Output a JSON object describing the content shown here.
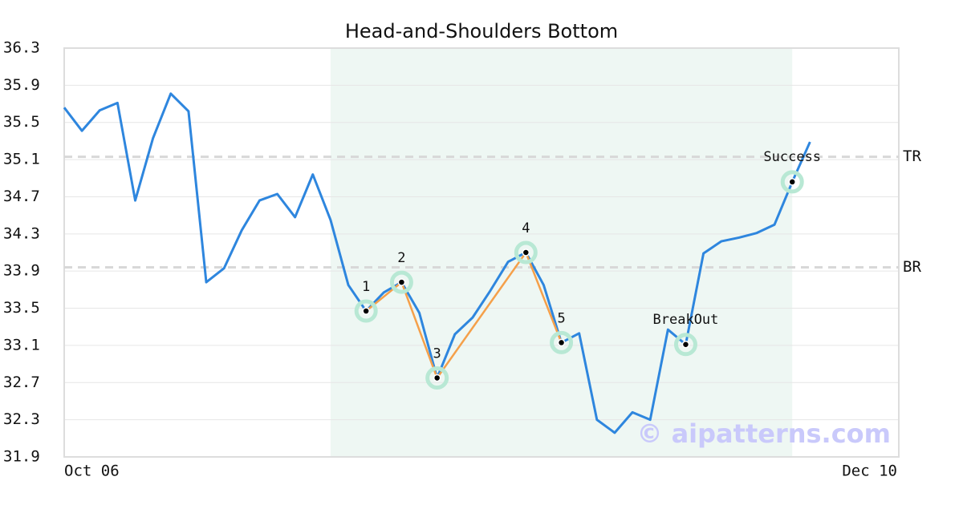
{
  "chart_data": {
    "type": "line",
    "title": "Head-and-Shoulders Bottom",
    "categories": [
      "Oct 06",
      null,
      null,
      null,
      null,
      null,
      null,
      null,
      null,
      null,
      null,
      null,
      null,
      null,
      null,
      null,
      null,
      null,
      null,
      null,
      null,
      null,
      null,
      null,
      null,
      null,
      null,
      null,
      null,
      null,
      null,
      null,
      null,
      null,
      null,
      null,
      null,
      null,
      null,
      null,
      null,
      null,
      null,
      null,
      null,
      null,
      null,
      "Dec 10"
    ],
    "series": [
      {
        "color": "#2e86de",
        "values": [
          35.66,
          35.41,
          35.63,
          35.71,
          34.66,
          35.33,
          35.81,
          35.62,
          33.78,
          33.93,
          34.34,
          34.66,
          34.73,
          34.48,
          34.94,
          34.45,
          33.75,
          33.47,
          33.67,
          33.78,
          33.45,
          32.75,
          33.22,
          33.4,
          33.69,
          34.0,
          34.1,
          33.75,
          33.13,
          33.23,
          32.3,
          32.16,
          32.38,
          32.3,
          33.27,
          33.11,
          34.09,
          34.22,
          34.26,
          34.31,
          34.4,
          34.86,
          35.29,
          null,
          null,
          null,
          null,
          null
        ]
      }
    ],
    "pattern_color": "#f5a04a",
    "pattern_points": [
      {
        "label": "1",
        "index": 17,
        "value": 33.47
      },
      {
        "label": "2",
        "index": 19,
        "value": 33.78
      },
      {
        "label": "3",
        "index": 21,
        "value": 32.75
      },
      {
        "label": "4",
        "index": 26,
        "value": 34.1
      },
      {
        "label": "5",
        "index": 28,
        "value": 33.13
      }
    ],
    "events": [
      {
        "label": "BreakOut",
        "index": 35,
        "value": 33.11
      },
      {
        "label": "Success",
        "index": 41,
        "value": 34.86
      }
    ],
    "reference_lines": [
      {
        "label": "TR",
        "value": 35.13
      },
      {
        "label": "BR",
        "value": 33.94
      }
    ],
    "highlight_range": [
      15,
      41
    ],
    "highlight_color": "#eef7f3",
    "ylim": [
      31.9,
      36.3
    ],
    "yticks": [
      31.9,
      32.3,
      32.7,
      33.1,
      33.5,
      33.9,
      34.3,
      34.7,
      35.1,
      35.5,
      35.9,
      36.3
    ],
    "grid": true,
    "watermark": "© aipatterns.com"
  }
}
